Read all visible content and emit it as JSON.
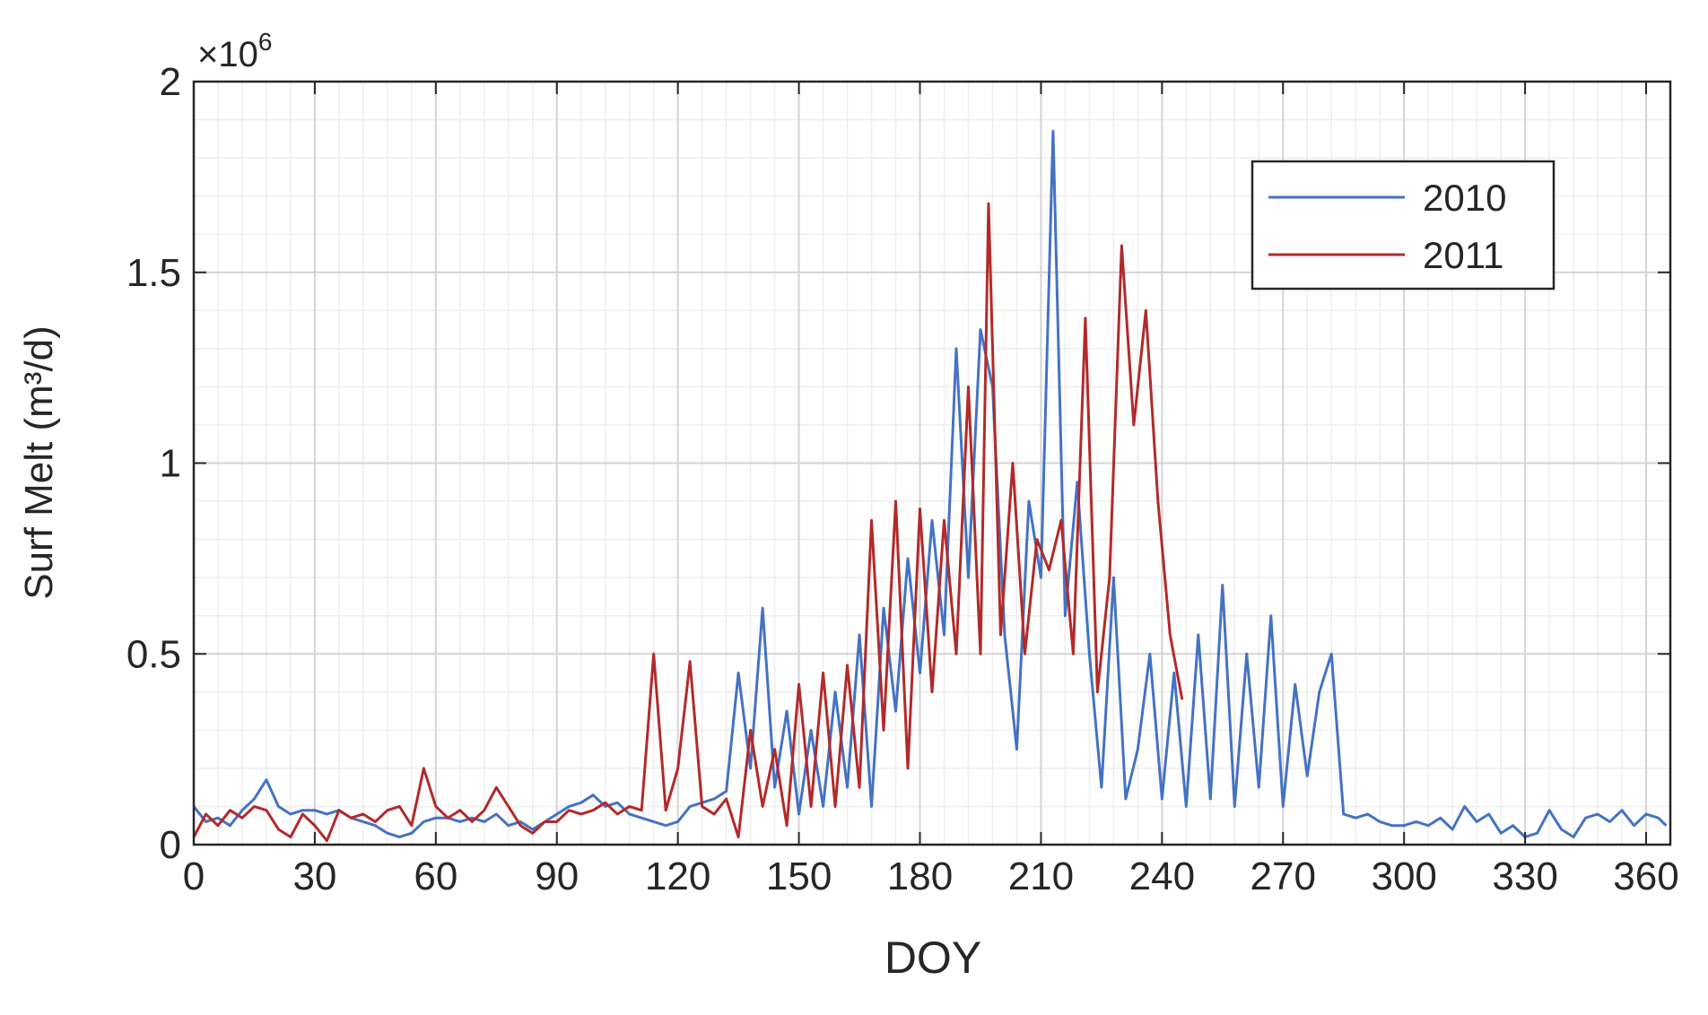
{
  "chart_data": {
    "type": "line",
    "xlabel": "DOY",
    "ylabel": "Surf Melt (m³/d)",
    "y_multiplier": "×10",
    "y_exponent": "6",
    "xlim": [
      0,
      366
    ],
    "ylim": [
      0,
      2
    ],
    "xticks": [
      0,
      30,
      60,
      90,
      120,
      150,
      180,
      210,
      240,
      270,
      300,
      330,
      360
    ],
    "yticks": [
      0,
      0.5,
      1,
      1.5,
      2
    ],
    "grid": true,
    "minor_grid": true,
    "legend": "upper right",
    "series": [
      {
        "name": "2010",
        "color": "#4472c4",
        "x": [
          0,
          3,
          6,
          9,
          12,
          15,
          18,
          21,
          24,
          27,
          30,
          33,
          36,
          39,
          42,
          45,
          48,
          51,
          54,
          57,
          60,
          63,
          66,
          69,
          72,
          75,
          78,
          81,
          84,
          87,
          90,
          93,
          96,
          99,
          102,
          105,
          108,
          111,
          114,
          117,
          120,
          123,
          126,
          129,
          132,
          135,
          138,
          141,
          144,
          147,
          150,
          153,
          156,
          159,
          162,
          165,
          168,
          171,
          174,
          177,
          180,
          183,
          186,
          189,
          192,
          195,
          198,
          201,
          204,
          207,
          210,
          213,
          216,
          219,
          222,
          225,
          228,
          231,
          234,
          237,
          240,
          243,
          246,
          249,
          252,
          255,
          258,
          261,
          264,
          267,
          270,
          273,
          276,
          279,
          282,
          285,
          288,
          291,
          294,
          297,
          300,
          303,
          306,
          309,
          312,
          315,
          318,
          321,
          324,
          327,
          330,
          333,
          336,
          339,
          342,
          345,
          348,
          351,
          354,
          357,
          360,
          363,
          365
        ],
        "values": [
          0.1,
          0.06,
          0.07,
          0.05,
          0.09,
          0.12,
          0.17,
          0.1,
          0.08,
          0.09,
          0.09,
          0.08,
          0.09,
          0.07,
          0.06,
          0.05,
          0.03,
          0.02,
          0.03,
          0.06,
          0.07,
          0.07,
          0.06,
          0.07,
          0.06,
          0.08,
          0.05,
          0.06,
          0.04,
          0.06,
          0.08,
          0.1,
          0.11,
          0.13,
          0.1,
          0.11,
          0.08,
          0.07,
          0.06,
          0.05,
          0.06,
          0.1,
          0.11,
          0.12,
          0.14,
          0.45,
          0.2,
          0.62,
          0.15,
          0.35,
          0.08,
          0.3,
          0.1,
          0.4,
          0.15,
          0.55,
          0.1,
          0.62,
          0.35,
          0.75,
          0.45,
          0.85,
          0.55,
          1.3,
          0.7,
          1.35,
          1.2,
          0.55,
          0.25,
          0.9,
          0.7,
          1.87,
          0.6,
          0.95,
          0.5,
          0.15,
          0.7,
          0.12,
          0.25,
          0.5,
          0.12,
          0.45,
          0.1,
          0.55,
          0.12,
          0.68,
          0.1,
          0.5,
          0.15,
          0.6,
          0.1,
          0.42,
          0.18,
          0.4,
          0.5,
          0.08,
          0.07,
          0.08,
          0.06,
          0.05,
          0.05,
          0.06,
          0.05,
          0.07,
          0.04,
          0.1,
          0.06,
          0.08,
          0.03,
          0.05,
          0.02,
          0.03,
          0.09,
          0.04,
          0.02,
          0.07,
          0.08,
          0.06,
          0.09,
          0.05,
          0.08,
          0.07,
          0.05
        ]
      },
      {
        "name": "2011",
        "color": "#b22a2a",
        "x": [
          0,
          3,
          6,
          9,
          12,
          15,
          18,
          21,
          24,
          27,
          30,
          33,
          36,
          39,
          42,
          45,
          48,
          51,
          54,
          57,
          60,
          63,
          66,
          69,
          72,
          75,
          78,
          81,
          84,
          87,
          90,
          93,
          96,
          99,
          102,
          105,
          108,
          111,
          114,
          117,
          120,
          123,
          126,
          129,
          132,
          135,
          138,
          141,
          144,
          147,
          150,
          153,
          156,
          159,
          162,
          165,
          168,
          171,
          174,
          177,
          180,
          183,
          186,
          189,
          192,
          195,
          197,
          200,
          203,
          206,
          209,
          212,
          215,
          218,
          221,
          224,
          227,
          230,
          233,
          236,
          239,
          242,
          245
        ],
        "values": [
          0.02,
          0.08,
          0.05,
          0.09,
          0.07,
          0.1,
          0.09,
          0.04,
          0.02,
          0.08,
          0.05,
          0.01,
          0.09,
          0.07,
          0.08,
          0.06,
          0.09,
          0.1,
          0.05,
          0.2,
          0.1,
          0.07,
          0.09,
          0.06,
          0.09,
          0.15,
          0.1,
          0.05,
          0.03,
          0.06,
          0.06,
          0.09,
          0.08,
          0.09,
          0.11,
          0.08,
          0.1,
          0.09,
          0.5,
          0.09,
          0.2,
          0.48,
          0.1,
          0.08,
          0.12,
          0.02,
          0.3,
          0.1,
          0.25,
          0.05,
          0.42,
          0.1,
          0.45,
          0.1,
          0.47,
          0.15,
          0.85,
          0.3,
          0.9,
          0.2,
          0.88,
          0.4,
          0.85,
          0.5,
          1.2,
          0.5,
          1.68,
          0.55,
          1.0,
          0.5,
          0.8,
          0.72,
          0.85,
          0.5,
          1.38,
          0.4,
          0.7,
          1.57,
          1.1,
          1.4,
          0.9,
          0.55,
          0.38
        ]
      }
    ]
  }
}
